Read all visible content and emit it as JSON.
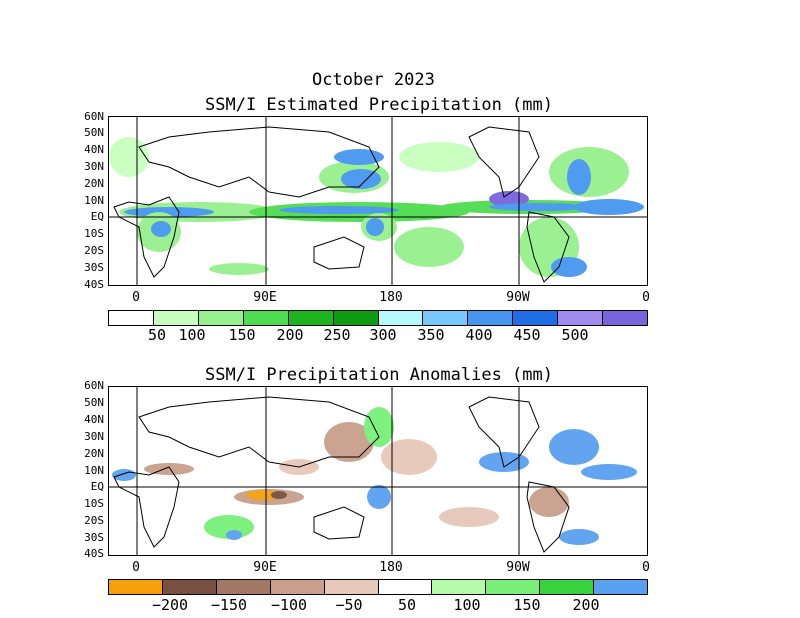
{
  "title_line1": "October 2023",
  "map1": {
    "title": "SSM/I Estimated Precipitation (mm)",
    "lat_labels": [
      "60N",
      "50N",
      "40N",
      "30N",
      "20N",
      "10N",
      "EQ",
      "10S",
      "20S",
      "30S",
      "40S"
    ],
    "lon_labels": [
      "0",
      "90E",
      "180",
      "90W",
      "0"
    ],
    "colorbar": {
      "colors": [
        "#ffffff",
        "#c8ffbe",
        "#96f08c",
        "#50dc50",
        "#1eb41e",
        "#0f9b0f",
        "#b4faff",
        "#78c8ff",
        "#4696f0",
        "#1e6ee6",
        "#a08cf0",
        "#7864dc"
      ],
      "labels": [
        "50",
        "100",
        "150",
        "200",
        "250",
        "300",
        "350",
        "400",
        "450",
        "500"
      ]
    }
  },
  "map2": {
    "title": "SSM/I Precipitation Anomalies (mm)",
    "lat_labels": [
      "60N",
      "50N",
      "40N",
      "30N",
      "20N",
      "10N",
      "EQ",
      "10S",
      "20S",
      "30S",
      "40S"
    ],
    "lon_labels": [
      "0",
      "90E",
      "180",
      "90W",
      "0"
    ],
    "colorbar": {
      "colors": [
        "#f5a00a",
        "#785041",
        "#a07864",
        "#c8a08c",
        "#e6c8b9",
        "#ffffff",
        "#b4faaa",
        "#78f078",
        "#37d23c",
        "#5aa0f0"
      ],
      "labels": [
        "−200",
        "−150",
        "−100",
        "−50",
        "50",
        "100",
        "150",
        "200"
      ]
    }
  }
}
